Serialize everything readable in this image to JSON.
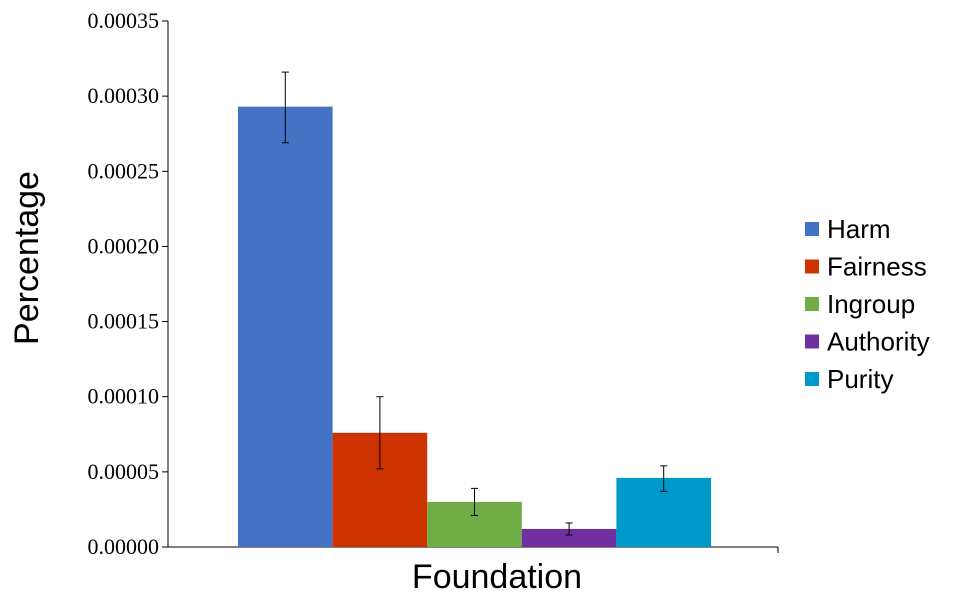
{
  "chart_data": {
    "type": "bar",
    "title": "",
    "xlabel": "Foundation",
    "ylabel": "Percentage",
    "ylim": [
      0,
      0.00035
    ],
    "yticks": [
      "0.00000",
      "0.00005",
      "0.00010",
      "0.00015",
      "0.00020",
      "0.00025",
      "0.00030",
      "0.00035"
    ],
    "grid": false,
    "legend_position": "right",
    "series": [
      {
        "name": "Harm",
        "value": 0.000293,
        "error_low": 0.000269,
        "error_high": 0.000316,
        "color": "#4472C4"
      },
      {
        "name": "Fairness",
        "value": 7.6e-05,
        "error_low": 5.2e-05,
        "error_high": 0.0001,
        "color": "#CC3300"
      },
      {
        "name": "Ingroup",
        "value": 3e-05,
        "error_low": 2.1e-05,
        "error_high": 3.9e-05,
        "color": "#70AD47"
      },
      {
        "name": "Authority",
        "value": 1.2e-05,
        "error_low": 8e-06,
        "error_high": 1.6e-05,
        "color": "#7030A0"
      },
      {
        "name": "Purity",
        "value": 4.6e-05,
        "error_low": 3.7e-05,
        "error_high": 5.4e-05,
        "color": "#0099CC"
      }
    ]
  }
}
